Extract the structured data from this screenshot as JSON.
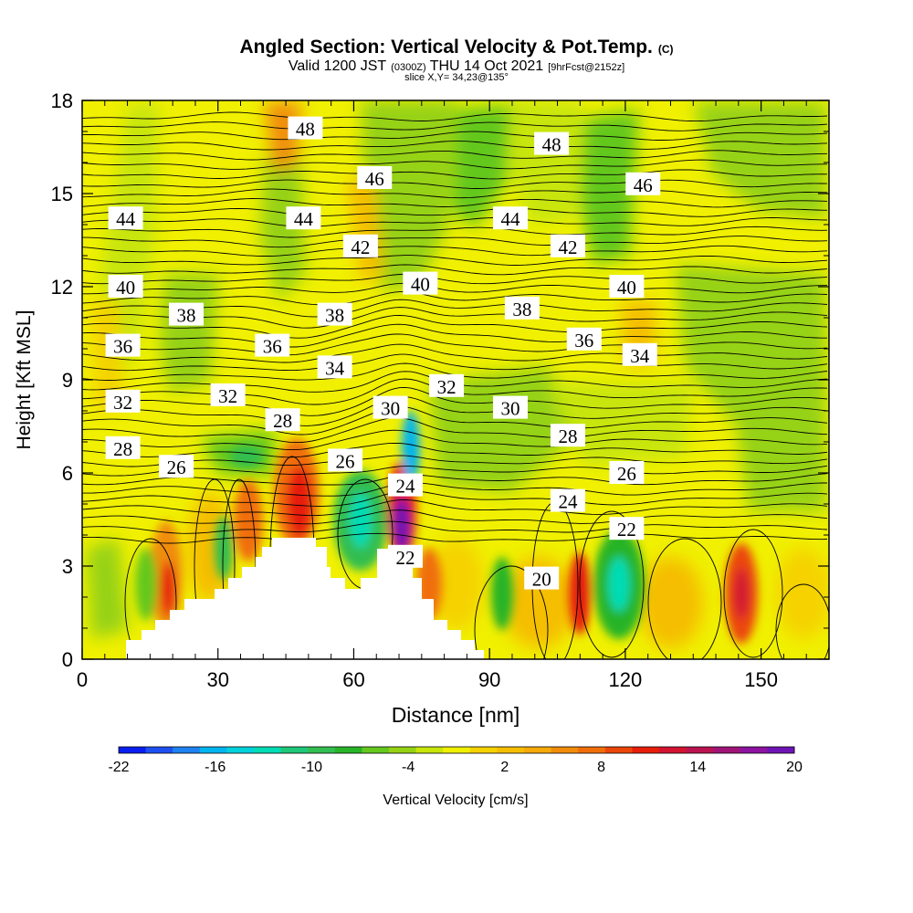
{
  "header": {
    "title": "Angled Section: Vertical Velocity & Pot.Temp.",
    "title_mark": "(C)",
    "valid_prefix": "Valid 1200 JST",
    "valid_zulu": "(0300Z)",
    "valid_date": "THU 14 Oct 2021",
    "forecast_tag": "[9hrFcst@2152z]",
    "slice_info": "slice X,Y= 34,23@135°"
  },
  "chart_data": {
    "type": "heatmap",
    "title": "Angled Section: Vertical Velocity & Pot.Temp.",
    "xlabel": "Distance [nm]",
    "ylabel": "Height [Kft MSL]",
    "xlim": [
      0,
      165
    ],
    "ylim": [
      0,
      18
    ],
    "x_ticks": [
      0,
      30,
      60,
      90,
      120,
      150
    ],
    "y_ticks": [
      0,
      3,
      6,
      9,
      12,
      15,
      18
    ],
    "colorbar": {
      "label": "Vertical Velocity [cm/s]",
      "min": -22,
      "max": 20,
      "tick_labels": [
        "-22",
        "-16",
        "-10",
        "-4",
        "2",
        "8",
        "14",
        "20"
      ],
      "colors": [
        "#0a1ef0",
        "#1e50f0",
        "#1e82f0",
        "#00b4f0",
        "#00d2dc",
        "#00dcb4",
        "#1ec878",
        "#32be50",
        "#28b428",
        "#64c81e",
        "#96d214",
        "#c8e60a",
        "#f0f000",
        "#f5d200",
        "#f5be00",
        "#f5aa0a",
        "#f08c0a",
        "#f06e0a",
        "#eb460a",
        "#e61e0a",
        "#d21432",
        "#b91450",
        "#a01478",
        "#8c14a0",
        "#6e14b4"
      ]
    },
    "theta_labels": [
      {
        "v": "48",
        "x": 49.3,
        "y": 17.1
      },
      {
        "v": "48",
        "x": 103.7,
        "y": 16.6
      },
      {
        "v": "46",
        "x": 64.6,
        "y": 15.5
      },
      {
        "v": "46",
        "x": 123.9,
        "y": 15.3
      },
      {
        "v": "44",
        "x": 9.6,
        "y": 14.2
      },
      {
        "v": "44",
        "x": 48.9,
        "y": 14.2
      },
      {
        "v": "44",
        "x": 94.6,
        "y": 14.2
      },
      {
        "v": "42",
        "x": 61.5,
        "y": 13.3
      },
      {
        "v": "42",
        "x": 107.3,
        "y": 13.3
      },
      {
        "v": "40",
        "x": 9.6,
        "y": 12.0
      },
      {
        "v": "40",
        "x": 74.7,
        "y": 12.1
      },
      {
        "v": "40",
        "x": 120.3,
        "y": 12.0
      },
      {
        "v": "38",
        "x": 23.0,
        "y": 11.1
      },
      {
        "v": "38",
        "x": 55.8,
        "y": 11.1
      },
      {
        "v": "38",
        "x": 97.2,
        "y": 11.3
      },
      {
        "v": "36",
        "x": 9.0,
        "y": 10.1
      },
      {
        "v": "36",
        "x": 42.0,
        "y": 10.1
      },
      {
        "v": "36",
        "x": 110.9,
        "y": 10.3
      },
      {
        "v": "34",
        "x": 55.8,
        "y": 9.4
      },
      {
        "v": "34",
        "x": 123.2,
        "y": 9.8
      },
      {
        "v": "32",
        "x": 9.0,
        "y": 8.3
      },
      {
        "v": "32",
        "x": 32.2,
        "y": 8.5
      },
      {
        "v": "32",
        "x": 80.5,
        "y": 8.8
      },
      {
        "v": "30",
        "x": 68.1,
        "y": 8.1
      },
      {
        "v": "30",
        "x": 94.6,
        "y": 8.1
      },
      {
        "v": "28",
        "x": 9.0,
        "y": 6.8
      },
      {
        "v": "28",
        "x": 44.3,
        "y": 7.7
      },
      {
        "v": "28",
        "x": 107.3,
        "y": 7.2
      },
      {
        "v": "26",
        "x": 20.8,
        "y": 6.2
      },
      {
        "v": "26",
        "x": 58.1,
        "y": 6.4
      },
      {
        "v": "26",
        "x": 120.3,
        "y": 6.0
      },
      {
        "v": "24",
        "x": 71.4,
        "y": 5.6
      },
      {
        "v": "24",
        "x": 107.3,
        "y": 5.1
      },
      {
        "v": "22",
        "x": 71.4,
        "y": 3.3
      },
      {
        "v": "22",
        "x": 120.3,
        "y": 4.2
      },
      {
        "v": "20",
        "x": 101.5,
        "y": 2.6
      }
    ]
  },
  "colors": {
    "background": "#f0f000",
    "terrain": "#ffffff",
    "contour": "#000000"
  }
}
